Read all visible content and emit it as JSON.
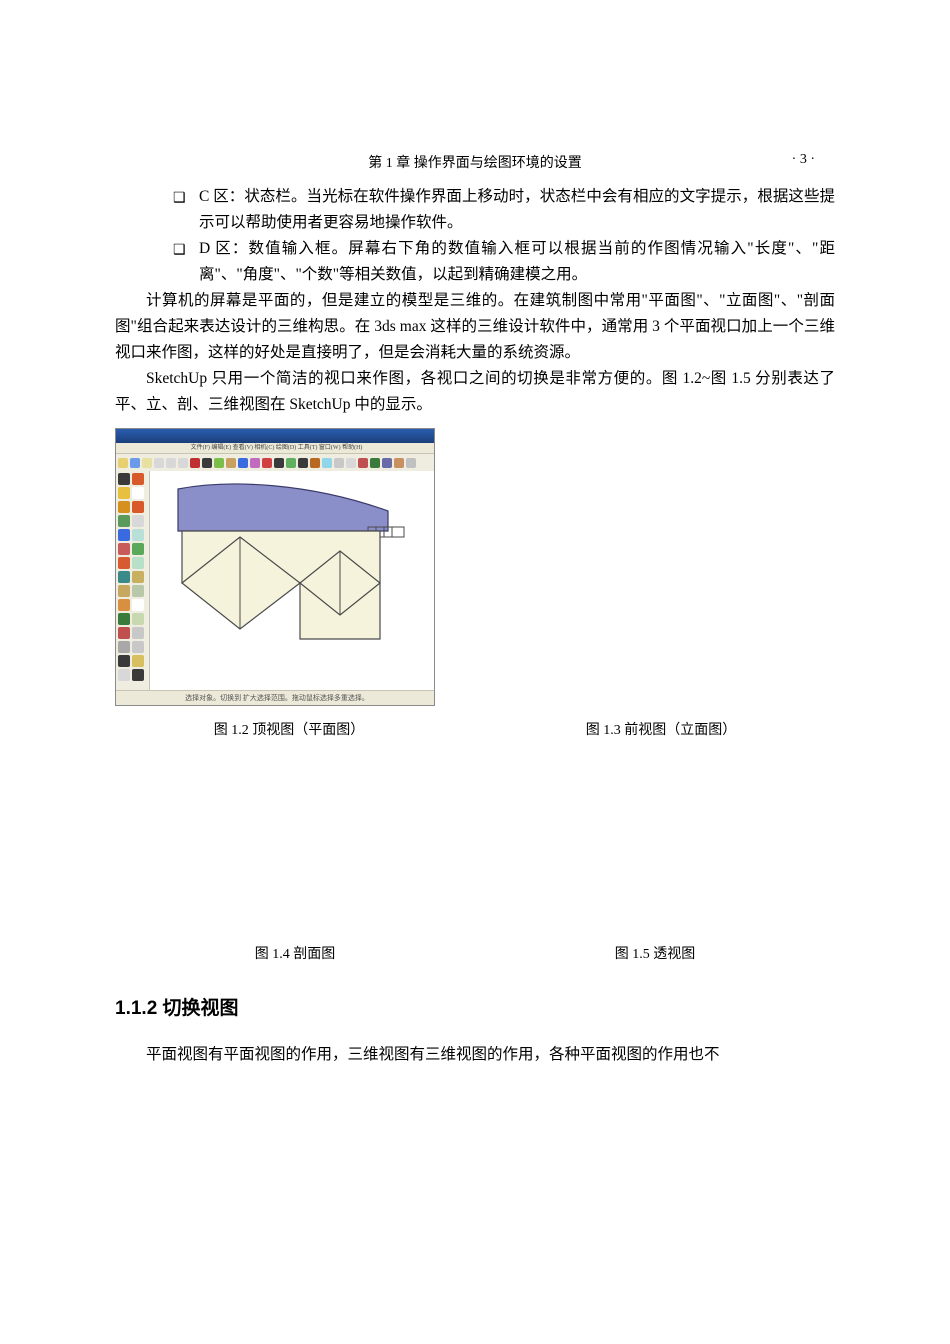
{
  "header": {
    "chapter_label": "第 1 章   操作界面与绘图环境的设置",
    "page_number": "· 3 ·"
  },
  "bullets": [
    {
      "marker": "❑",
      "text": "C 区：状态栏。当光标在软件操作界面上移动时，状态栏中会有相应的文字提示，根据这些提示可以帮助使用者更容易地操作软件。"
    },
    {
      "marker": "❑",
      "text": "D 区：数值输入框。屏幕右下角的数值输入框可以根据当前的作图情况输入\"长度\"、\"距离\"、\"角度\"、\"个数\"等相关数值，以起到精确建模之用。"
    }
  ],
  "paragraphs": [
    "计算机的屏幕是平面的，但是建立的模型是三维的。在建筑制图中常用\"平面图\"、\"立面图\"、\"剖面图\"组合起来表达设计的三维构思。在 3ds max 这样的三维设计软件中，通常用 3 个平面视口加上一个三维视口来作图，这样的好处是直接明了，但是会消耗大量的系统资源。",
    "SketchUp 只用一个简洁的视口来作图，各视口之间的切换是非常方便的。图 1.2~图 1.5 分别表达了平、立、剖、三维视图在 SketchUp 中的显示。"
  ],
  "figures": {
    "fig12": {
      "caption": "图 1.2   顶视图（平面图）"
    },
    "fig13": {
      "caption": "图 1.3   前视图（立面图）"
    },
    "fig14": {
      "caption": "图 1.4   剖面图"
    },
    "fig15": {
      "caption": "图 1.5   透视图"
    }
  },
  "screenshot": {
    "menubar_text": "文件(F) 编辑(E) 查看(V) 相机(C) 绘图(D) 工具(T) 窗口(W) 帮助(H)",
    "status_text": "选择对象。切换到 扩大选择范围。拖动鼠标选择多重选择。",
    "toolbar_colors": [
      "#e8d070",
      "#6a9ae8",
      "#e8e0a0",
      "#d8d8d8",
      "#d8d8d8",
      "#d8d8d8",
      "#c03030",
      "#3a3a3a",
      "#7bbf4a",
      "#c8a060",
      "#3a6adf",
      "#c06ac0",
      "#d04040",
      "#3a3a3a",
      "#60b060",
      "#3a3a3a",
      "#b86820",
      "#8fd6e8",
      "#c8c8c8",
      "#d8d8d8",
      "#c05050",
      "#3a7a3a",
      "#6a6aa8",
      "#c89060",
      "#c0c0c0"
    ],
    "left_colors": [
      [
        "#3a3a3a",
        "#d85a2a"
      ],
      [
        "#e8c040",
        "#ffffff"
      ],
      [
        "#d69020",
        "#d85a2a"
      ],
      [
        "#5a9a5a",
        "#d8d8d8"
      ],
      [
        "#3a6adf",
        "#b8e0d8"
      ],
      [
        "#c85a5a",
        "#5aa85a"
      ],
      [
        "#d85a30",
        "#b8e0c8"
      ],
      [
        "#3a8a8a",
        "#c8b060"
      ],
      [
        "#c8a860",
        "#b8c8a8"
      ],
      [
        "#d89040",
        "#ffffff"
      ],
      [
        "#3a7a3a",
        "#c8d8b0"
      ],
      [
        "#c05050",
        "#c8c8c8"
      ],
      [
        "#a8a8a8",
        "#c8c8c8"
      ],
      [
        "#3a3a3a",
        "#d8c060"
      ],
      [
        "#d8d8d8",
        "#3a3a3a"
      ]
    ],
    "building": {
      "wall_fill": "#f5f3dc",
      "wall_stroke": "#4a4a4a",
      "roof_fill": "#8b8fc9",
      "roof_stroke": "#3a3a6a"
    }
  },
  "section": {
    "number": "1.1.2",
    "title": "切换视图",
    "heading": "1.1.2   切换视图",
    "para": "平面视图有平面视图的作用，三维视图有三维视图的作用，各种平面视图的作用也不"
  },
  "colors": {
    "text": "#000000",
    "background": "#ffffff"
  }
}
